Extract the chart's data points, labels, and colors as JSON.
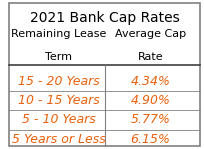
{
  "title": "2021 Bank Cap Rates",
  "col1_header_line1": "Remaining Lease",
  "col1_header_line2": "Term",
  "col2_header_line1": "Average Cap",
  "col2_header_line2": "Rate",
  "rows": [
    [
      "15 - 20 Years",
      "4.34%"
    ],
    [
      "10 - 15 Years",
      "4.90%"
    ],
    [
      "5 - 10 Years",
      "5.77%"
    ],
    [
      "5 Years or Less",
      "6.15%"
    ]
  ],
  "title_color": "#000000",
  "header_color": "#000000",
  "data_color": "#E8610A",
  "bg_color": "#FFFFFF",
  "border_color": "#808080",
  "title_fontsize": 10,
  "header_fontsize": 8,
  "data_fontsize": 9,
  "outer_border_color": "#808080",
  "header_divider_color": "#404040"
}
